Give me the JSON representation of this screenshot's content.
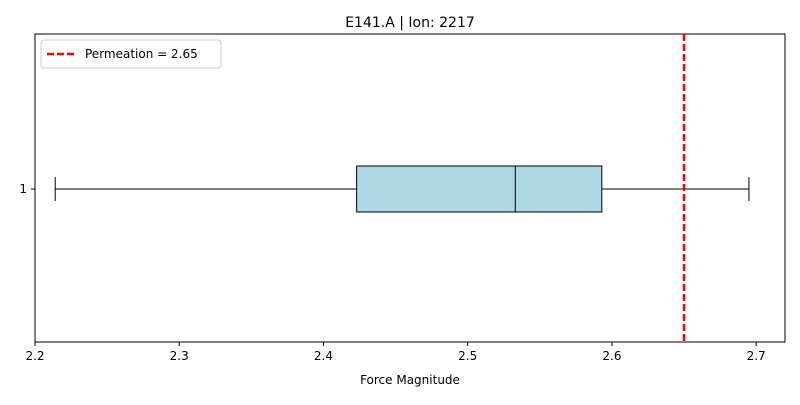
{
  "chart_data": {
    "type": "boxplot",
    "orientation": "horizontal",
    "title": "E141.A | Ion: 2217",
    "xlabel": "Force Magnitude",
    "ylabel": "",
    "xlim": [
      2.2,
      2.72
    ],
    "xticks": [
      "2.2",
      "2.3",
      "2.4",
      "2.5",
      "2.6",
      "2.7"
    ],
    "yticks": [
      "1"
    ],
    "box": {
      "category": "1",
      "whisker_low": 2.214,
      "q1": 2.423,
      "median": 2.533,
      "q3": 2.593,
      "whisker_high": 2.695,
      "fill_color": "#add8e6",
      "edge_color": "#000000"
    },
    "reference_line": {
      "value": 2.65,
      "label": "Permeation = 2.65",
      "color": "#ff0000",
      "style": "dashed"
    },
    "legend": {
      "placement": "top-left"
    },
    "grid": false
  }
}
